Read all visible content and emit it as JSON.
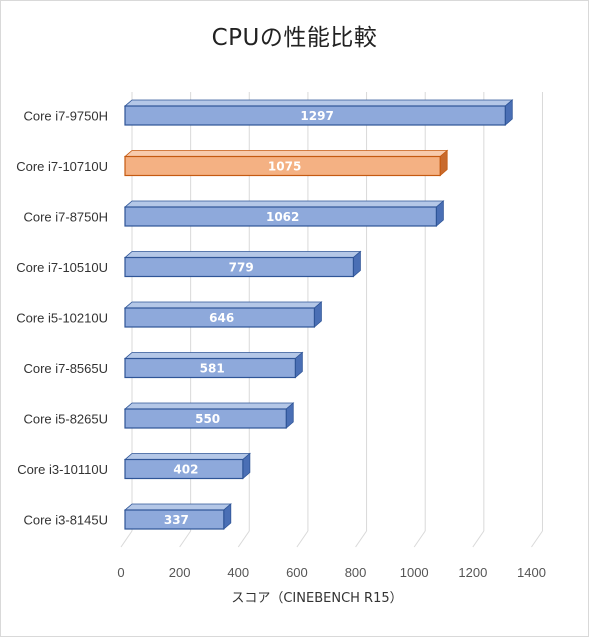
{
  "chart_data": {
    "type": "bar",
    "orientation": "horizontal",
    "title": "CPUの性能比較",
    "xlabel": "スコア（CINEBENCH R15）",
    "ylabel": "",
    "categories": [
      "Core i7-9750H",
      "Core i7-10710U",
      "Core i7-8750H",
      "Core i7-10510U",
      "Core i5-10210U",
      "Core i7-8565U",
      "Core i5-8265U",
      "Core i3-10110U",
      "Core i3-8145U"
    ],
    "values": [
      1297,
      1075,
      1062,
      779,
      646,
      581,
      550,
      402,
      337
    ],
    "xlim": [
      0,
      1400
    ],
    "xticks": [
      0,
      200,
      400,
      600,
      800,
      1000,
      1200,
      1400
    ],
    "highlight_index": 1,
    "grid": true,
    "style": "3d",
    "colors": {
      "bar": "#8ea9db",
      "bar_edge": "#2f5597",
      "bar_top": "#b4c7e7",
      "bar_side": "#4a6fb5",
      "highlight": "#f4b183",
      "highlight_edge": "#c55a11",
      "highlight_top": "#f8cbad",
      "highlight_side": "#c86a2d",
      "grid": "#d9d9d9"
    }
  }
}
